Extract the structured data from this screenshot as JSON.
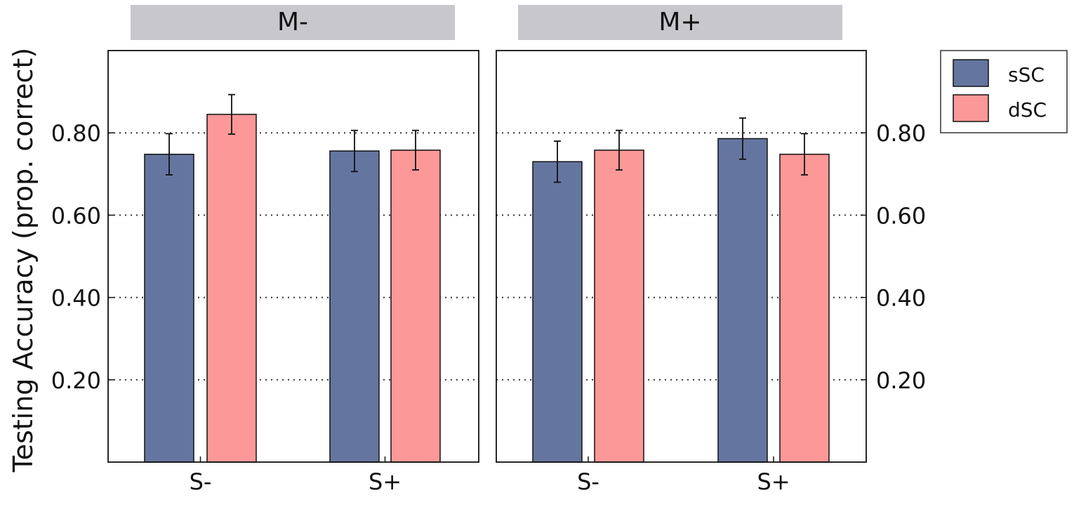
{
  "chart_data": {
    "type": "bar",
    "ylabel": "Testing Accuracy (prop. correct)",
    "ylim": [
      0,
      1
    ],
    "yticks": [
      0.2,
      0.4,
      0.6,
      0.8
    ],
    "ytick_labels": [
      "0.20",
      "0.40",
      "0.60",
      "0.80"
    ],
    "grid": "horizontal dotted",
    "legend_position": "right",
    "categories": [
      "S-",
      "S+"
    ],
    "series": [
      {
        "name": "sSC",
        "color": "#6476a0"
      },
      {
        "name": "dSC",
        "color": "#fd9898"
      }
    ],
    "panels": [
      {
        "title": "M-",
        "values": {
          "sSC": [
            0.748,
            0.756
          ],
          "dSC": [
            0.845,
            0.758
          ]
        },
        "errors": {
          "sSC": [
            0.05,
            0.05
          ],
          "dSC": [
            0.048,
            0.048
          ]
        }
      },
      {
        "title": "M+",
        "values": {
          "sSC": [
            0.73,
            0.786
          ],
          "dSC": [
            0.758,
            0.748
          ]
        },
        "errors": {
          "sSC": [
            0.05,
            0.05
          ],
          "dSC": [
            0.048,
            0.05
          ]
        }
      }
    ]
  }
}
